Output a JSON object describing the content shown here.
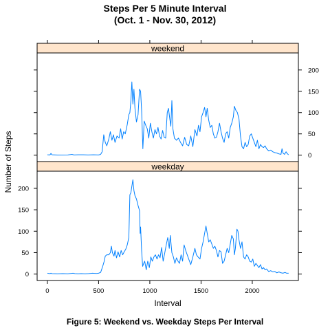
{
  "title": {
    "line1": "Steps Per 5 Minute Interval",
    "line2": "(Oct. 1 - Nov. 30, 2012)"
  },
  "caption": "Figure 5: Weekend vs. Weekday Steps Per Interval",
  "colors": {
    "line": "#0080ff",
    "strip": "#ffe5cc"
  },
  "chart_data": {
    "type": "line",
    "xlabel": "Interval",
    "ylabel": "Number of Steps",
    "xlim": [
      -100,
      2450
    ],
    "ylim": [
      -15,
      240
    ],
    "x_ticks": [
      0,
      500,
      1000,
      1500,
      2000
    ],
    "y_ticks": [
      0,
      50,
      100,
      150,
      200
    ],
    "panels": [
      {
        "name": "weekend",
        "y_axis_side": "right",
        "points": [
          [
            0,
            1
          ],
          [
            25,
            0.5
          ],
          [
            35,
            4
          ],
          [
            45,
            1
          ],
          [
            100,
            0.3
          ],
          [
            200,
            0.5
          ],
          [
            240,
            2
          ],
          [
            260,
            0.5
          ],
          [
            300,
            1
          ],
          [
            350,
            1
          ],
          [
            400,
            0.5
          ],
          [
            450,
            1
          ],
          [
            500,
            0.5
          ],
          [
            520,
            2
          ],
          [
            535,
            8
          ],
          [
            550,
            48
          ],
          [
            565,
            30
          ],
          [
            580,
            22
          ],
          [
            600,
            38
          ],
          [
            615,
            55
          ],
          [
            630,
            35
          ],
          [
            645,
            48
          ],
          [
            660,
            30
          ],
          [
            680,
            45
          ],
          [
            700,
            40
          ],
          [
            715,
            62
          ],
          [
            730,
            38
          ],
          [
            745,
            55
          ],
          [
            760,
            50
          ],
          [
            780,
            72
          ],
          [
            795,
            95
          ],
          [
            805,
            100
          ],
          [
            815,
            128
          ],
          [
            825,
            172
          ],
          [
            835,
            120
          ],
          [
            845,
            155
          ],
          [
            855,
            110
          ],
          [
            870,
            78
          ],
          [
            885,
            95
          ],
          [
            900,
            155
          ],
          [
            910,
            150
          ],
          [
            920,
            105
          ],
          [
            932,
            15
          ],
          [
            945,
            80
          ],
          [
            960,
            70
          ],
          [
            975,
            62
          ],
          [
            990,
            40
          ],
          [
            1005,
            75
          ],
          [
            1020,
            55
          ],
          [
            1035,
            40
          ],
          [
            1050,
            60
          ],
          [
            1065,
            50
          ],
          [
            1080,
            65
          ],
          [
            1095,
            45
          ],
          [
            1110,
            38
          ],
          [
            1125,
            58
          ],
          [
            1140,
            42
          ],
          [
            1155,
            40
          ],
          [
            1170,
            100
          ],
          [
            1182,
            110
          ],
          [
            1195,
            85
          ],
          [
            1205,
            68
          ],
          [
            1215,
            128
          ],
          [
            1225,
            62
          ],
          [
            1240,
            40
          ],
          [
            1260,
            35
          ],
          [
            1280,
            40
          ],
          [
            1300,
            30
          ],
          [
            1320,
            22
          ],
          [
            1340,
            42
          ],
          [
            1360,
            25
          ],
          [
            1380,
            22
          ],
          [
            1400,
            45
          ],
          [
            1420,
            20
          ],
          [
            1440,
            60
          ],
          [
            1460,
            45
          ],
          [
            1475,
            70
          ],
          [
            1490,
            55
          ],
          [
            1505,
            90
          ],
          [
            1520,
            100
          ],
          [
            1535,
            112
          ],
          [
            1548,
            90
          ],
          [
            1560,
            110
          ],
          [
            1575,
            82
          ],
          [
            1590,
            65
          ],
          [
            1605,
            70
          ],
          [
            1620,
            50
          ],
          [
            1635,
            40
          ],
          [
            1650,
            42
          ],
          [
            1665,
            55
          ],
          [
            1680,
            75
          ],
          [
            1695,
            55
          ],
          [
            1710,
            40
          ],
          [
            1725,
            30
          ],
          [
            1740,
            50
          ],
          [
            1755,
            55
          ],
          [
            1770,
            40
          ],
          [
            1785,
            65
          ],
          [
            1800,
            75
          ],
          [
            1815,
            90
          ],
          [
            1825,
            115
          ],
          [
            1840,
            105
          ],
          [
            1855,
            100
          ],
          [
            1870,
            85
          ],
          [
            1885,
            45
          ],
          [
            1900,
            20
          ],
          [
            1915,
            15
          ],
          [
            1930,
            30
          ],
          [
            1945,
            20
          ],
          [
            1960,
            25
          ],
          [
            1975,
            45
          ],
          [
            1990,
            50
          ],
          [
            2005,
            40
          ],
          [
            2020,
            30
          ],
          [
            2035,
            20
          ],
          [
            2050,
            35
          ],
          [
            2065,
            15
          ],
          [
            2080,
            25
          ],
          [
            2095,
            20
          ],
          [
            2110,
            18
          ],
          [
            2125,
            22
          ],
          [
            2140,
            15
          ],
          [
            2160,
            10
          ],
          [
            2180,
            12
          ],
          [
            2200,
            8
          ],
          [
            2220,
            6
          ],
          [
            2240,
            5
          ],
          [
            2260,
            3
          ],
          [
            2280,
            2
          ],
          [
            2290,
            15
          ],
          [
            2300,
            5
          ],
          [
            2315,
            2
          ],
          [
            2330,
            8
          ],
          [
            2340,
            4
          ],
          [
            2355,
            1
          ]
        ]
      },
      {
        "name": "weekday",
        "y_axis_side": "left",
        "points": [
          [
            0,
            2
          ],
          [
            25,
            1
          ],
          [
            35,
            2
          ],
          [
            45,
            1
          ],
          [
            100,
            0.5
          ],
          [
            150,
            1
          ],
          [
            200,
            0.5
          ],
          [
            250,
            2
          ],
          [
            270,
            1
          ],
          [
            300,
            0.5
          ],
          [
            330,
            1
          ],
          [
            370,
            0.5
          ],
          [
            400,
            1
          ],
          [
            440,
            2
          ],
          [
            480,
            1.5
          ],
          [
            500,
            2
          ],
          [
            520,
            4
          ],
          [
            540,
            18
          ],
          [
            555,
            30
          ],
          [
            565,
            42
          ],
          [
            580,
            45
          ],
          [
            600,
            45
          ],
          [
            615,
            50
          ],
          [
            625,
            65
          ],
          [
            635,
            50
          ],
          [
            650,
            42
          ],
          [
            660,
            55
          ],
          [
            675,
            38
          ],
          [
            690,
            52
          ],
          [
            705,
            40
          ],
          [
            720,
            55
          ],
          [
            735,
            45
          ],
          [
            750,
            52
          ],
          [
            765,
            58
          ],
          [
            780,
            68
          ],
          [
            795,
            85
          ],
          [
            805,
            185
          ],
          [
            815,
            190
          ],
          [
            825,
            205
          ],
          [
            835,
            220
          ],
          [
            845,
            195
          ],
          [
            855,
            183
          ],
          [
            870,
            175
          ],
          [
            885,
            160
          ],
          [
            900,
            148
          ],
          [
            905,
            95
          ],
          [
            910,
            110
          ],
          [
            920,
            55
          ],
          [
            930,
            18
          ],
          [
            940,
            25
          ],
          [
            950,
            30
          ],
          [
            965,
            10
          ],
          [
            980,
            30
          ],
          [
            995,
            15
          ],
          [
            1010,
            40
          ],
          [
            1025,
            30
          ],
          [
            1040,
            40
          ],
          [
            1055,
            45
          ],
          [
            1070,
            35
          ],
          [
            1085,
            45
          ],
          [
            1100,
            38
          ],
          [
            1115,
            62
          ],
          [
            1130,
            30
          ],
          [
            1145,
            48
          ],
          [
            1160,
            68
          ],
          [
            1175,
            85
          ],
          [
            1190,
            60
          ],
          [
            1200,
            90
          ],
          [
            1215,
            50
          ],
          [
            1230,
            40
          ],
          [
            1245,
            25
          ],
          [
            1260,
            38
          ],
          [
            1275,
            30
          ],
          [
            1290,
            25
          ],
          [
            1305,
            45
          ],
          [
            1320,
            30
          ],
          [
            1335,
            68
          ],
          [
            1350,
            55
          ],
          [
            1365,
            45
          ],
          [
            1380,
            35
          ],
          [
            1400,
            22
          ],
          [
            1420,
            40
          ],
          [
            1440,
            60
          ],
          [
            1455,
            45
          ],
          [
            1470,
            40
          ],
          [
            1490,
            35
          ],
          [
            1505,
            60
          ],
          [
            1520,
            75
          ],
          [
            1535,
            95
          ],
          [
            1548,
            112
          ],
          [
            1560,
            95
          ],
          [
            1575,
            75
          ],
          [
            1590,
            80
          ],
          [
            1605,
            70
          ],
          [
            1620,
            60
          ],
          [
            1635,
            65
          ],
          [
            1650,
            55
          ],
          [
            1665,
            40
          ],
          [
            1680,
            55
          ],
          [
            1695,
            52
          ],
          [
            1710,
            25
          ],
          [
            1725,
            30
          ],
          [
            1740,
            45
          ],
          [
            1755,
            60
          ],
          [
            1770,
            50
          ],
          [
            1785,
            70
          ],
          [
            1800,
            90
          ],
          [
            1815,
            82
          ],
          [
            1825,
            45
          ],
          [
            1835,
            60
          ],
          [
            1850,
            105
          ],
          [
            1860,
            100
          ],
          [
            1870,
            80
          ],
          [
            1885,
            60
          ],
          [
            1900,
            75
          ],
          [
            1915,
            40
          ],
          [
            1930,
            35
          ],
          [
            1945,
            45
          ],
          [
            1960,
            40
          ],
          [
            1975,
            30
          ],
          [
            1990,
            28
          ],
          [
            2005,
            35
          ],
          [
            2020,
            18
          ],
          [
            2035,
            25
          ],
          [
            2050,
            20
          ],
          [
            2065,
            15
          ],
          [
            2080,
            22
          ],
          [
            2095,
            12
          ],
          [
            2110,
            15
          ],
          [
            2125,
            10
          ],
          [
            2140,
            12
          ],
          [
            2160,
            6
          ],
          [
            2180,
            8
          ],
          [
            2200,
            5
          ],
          [
            2220,
            6
          ],
          [
            2240,
            3
          ],
          [
            2260,
            5
          ],
          [
            2280,
            3
          ],
          [
            2300,
            2
          ],
          [
            2320,
            4
          ],
          [
            2335,
            2
          ],
          [
            2355,
            2
          ]
        ]
      }
    ]
  }
}
